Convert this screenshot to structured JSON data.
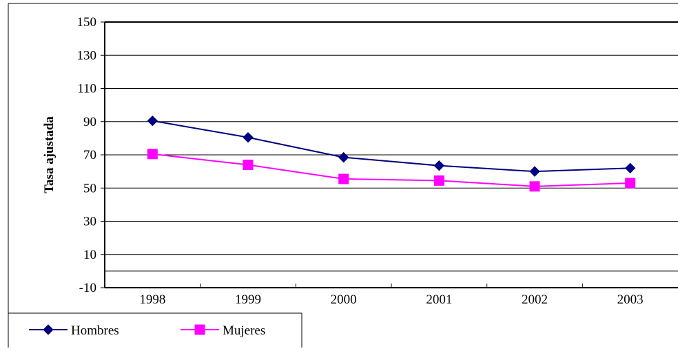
{
  "chart_data": {
    "type": "line",
    "title": "",
    "xlabel": "",
    "ylabel": "Tasa ajustada",
    "categories": [
      "1998",
      "1999",
      "2000",
      "2001",
      "2002",
      "2003"
    ],
    "ylim": [
      -10,
      150
    ],
    "yticks": [
      "150",
      "130",
      "110",
      "90",
      "70",
      "50",
      "30",
      "10",
      "-10"
    ],
    "grid": true,
    "legend_position": "bottom-left",
    "series": [
      {
        "name": "Hombres",
        "values": [
          90.5,
          80.5,
          68.5,
          63.5,
          60,
          62
        ],
        "color": "#000080",
        "marker": "diamond"
      },
      {
        "name": "Mujeres",
        "values": [
          70.5,
          64,
          55.5,
          54.5,
          51,
          53
        ],
        "color": "#ff00ff",
        "marker": "square"
      }
    ]
  }
}
